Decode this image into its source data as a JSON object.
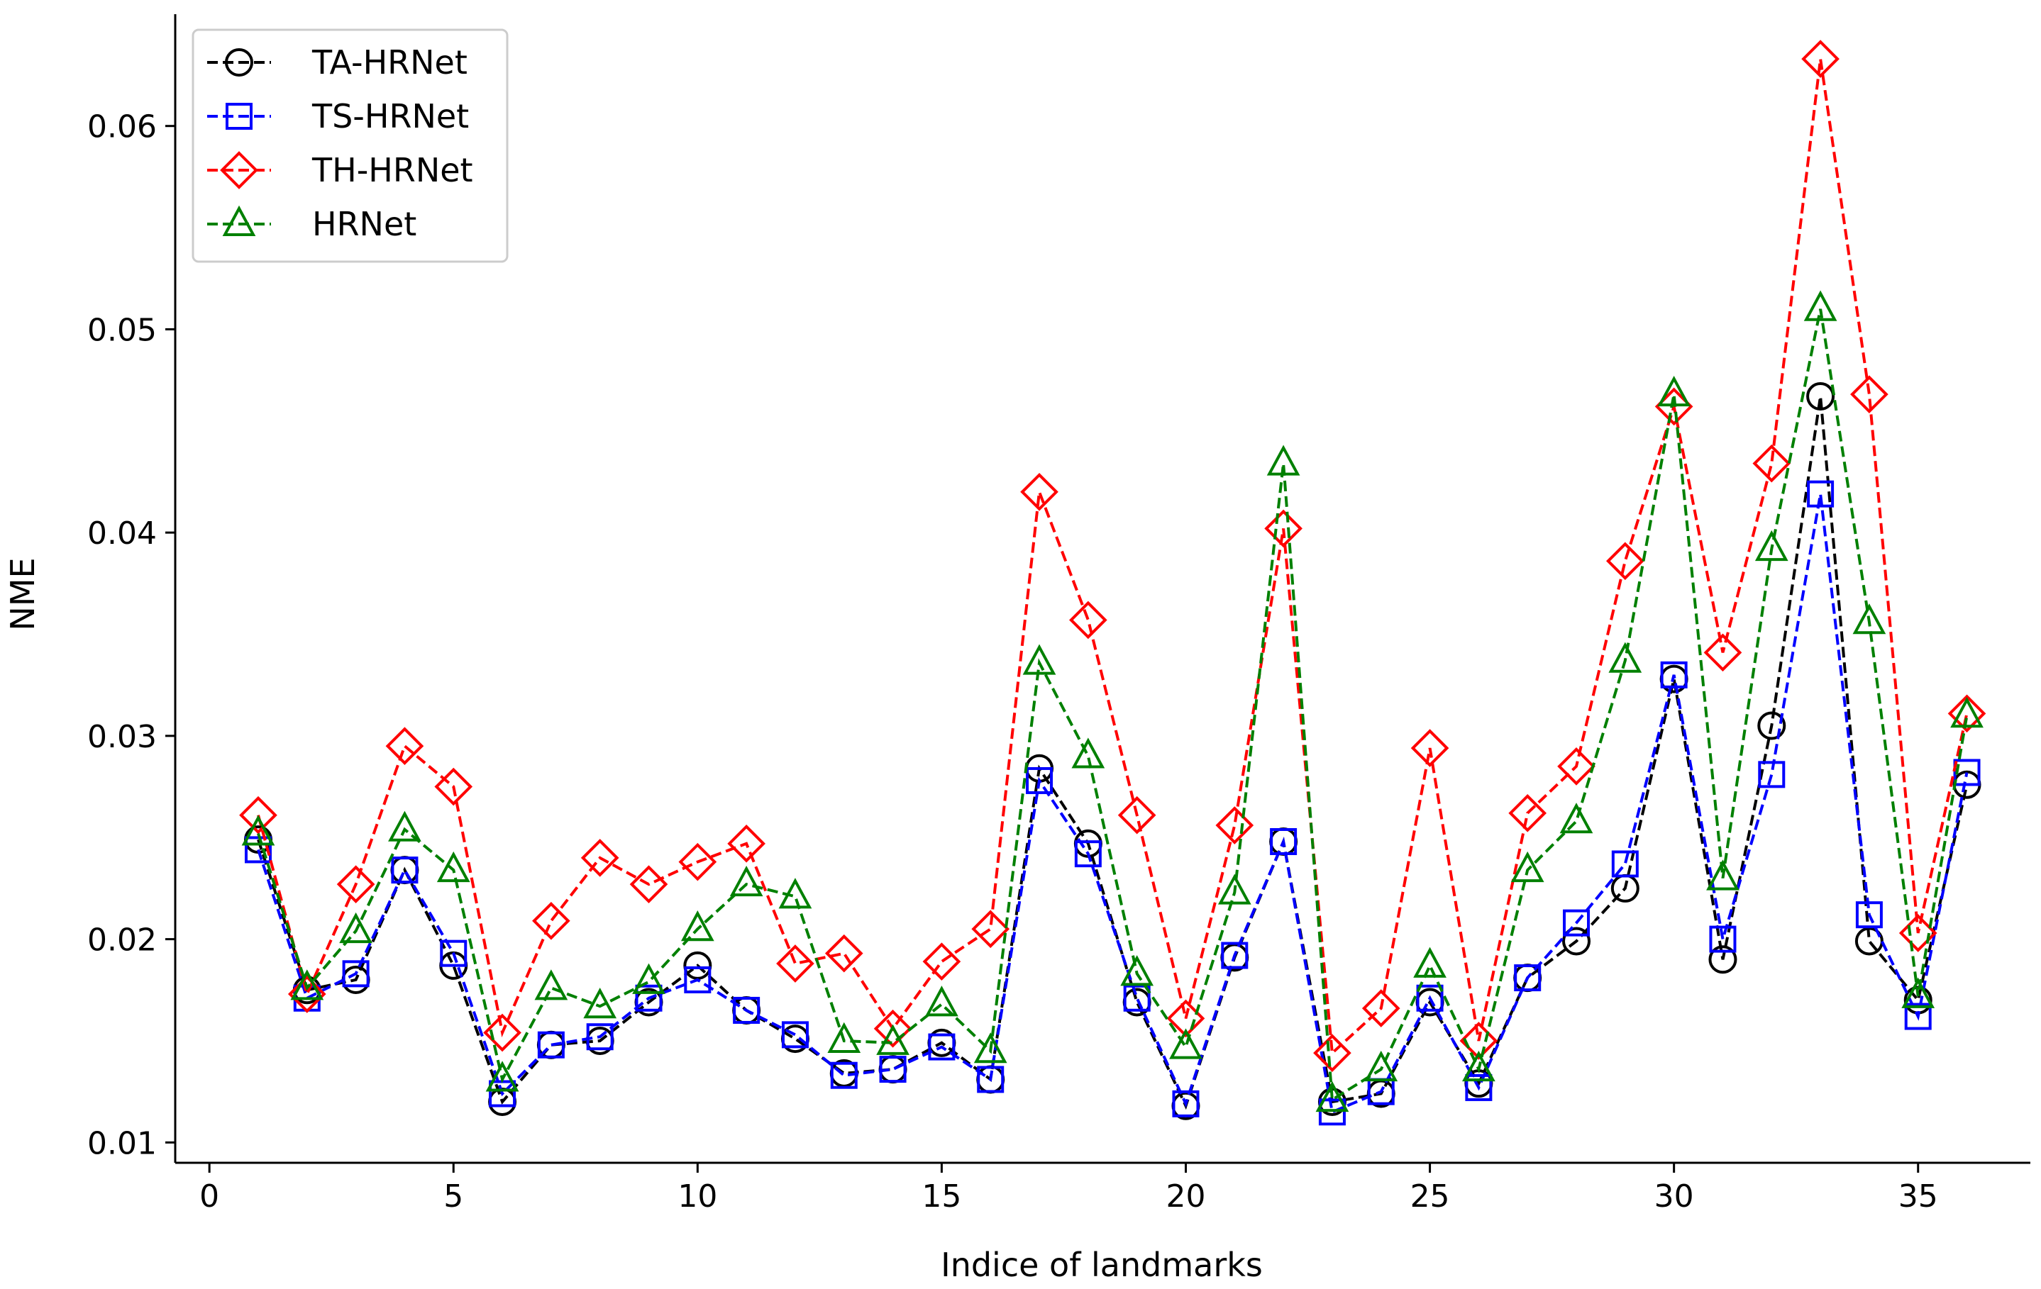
{
  "chart_data": {
    "type": "line",
    "xlabel": "Indice of landmarks",
    "ylabel": "NME",
    "xlim": [
      -0.7,
      37.3
    ],
    "ylim": [
      0.009,
      0.0655
    ],
    "xticks": [
      0,
      5,
      10,
      15,
      20,
      25,
      30,
      35
    ],
    "yticks": [
      0.01,
      0.02,
      0.03,
      0.04,
      0.05,
      0.06
    ],
    "ytick_labels": [
      "0.01",
      "0.02",
      "0.03",
      "0.04",
      "0.05",
      "0.06"
    ],
    "legend_position": "top-left",
    "x": [
      1,
      2,
      3,
      4,
      5,
      6,
      7,
      8,
      9,
      10,
      11,
      12,
      13,
      14,
      15,
      16,
      17,
      18,
      19,
      20,
      21,
      22,
      23,
      24,
      25,
      26,
      27,
      28,
      29,
      30,
      31,
      32,
      33,
      34,
      35,
      36
    ],
    "series": [
      {
        "name": "TA-HRNet",
        "color": "#000000",
        "marker": "circle",
        "values": [
          0.0249,
          0.0175,
          0.018,
          0.0234,
          0.0187,
          0.012,
          0.0148,
          0.015,
          0.0169,
          0.0187,
          0.0165,
          0.0151,
          0.0134,
          0.0136,
          0.0149,
          0.0131,
          0.0284,
          0.0247,
          0.0169,
          0.0118,
          0.0191,
          0.0248,
          0.012,
          0.0124,
          0.0169,
          0.0129,
          0.0181,
          0.0199,
          0.0225,
          0.0328,
          0.019,
          0.0305,
          0.0467,
          0.0199,
          0.017,
          0.0276
        ]
      },
      {
        "name": "TS-HRNet",
        "color": "#0000ff",
        "marker": "square",
        "values": [
          0.0244,
          0.0171,
          0.0183,
          0.0234,
          0.0193,
          0.0124,
          0.0148,
          0.0152,
          0.0171,
          0.018,
          0.0165,
          0.0153,
          0.0133,
          0.0136,
          0.0147,
          0.0131,
          0.0278,
          0.0242,
          0.0171,
          0.0119,
          0.0192,
          0.0248,
          0.0115,
          0.0125,
          0.0171,
          0.0127,
          0.0181,
          0.0208,
          0.0237,
          0.033,
          0.02,
          0.0281,
          0.0419,
          0.0212,
          0.0162,
          0.0282
        ]
      },
      {
        "name": "TH-HRNet",
        "color": "#ff0000",
        "marker": "diamond",
        "values": [
          0.0261,
          0.0173,
          0.0227,
          0.0295,
          0.0275,
          0.0154,
          0.0209,
          0.024,
          0.0227,
          0.0238,
          0.0247,
          0.0188,
          0.0193,
          0.0156,
          0.0189,
          0.0205,
          0.042,
          0.0357,
          0.0261,
          0.0161,
          0.0256,
          0.0402,
          0.0144,
          0.0166,
          0.0294,
          0.015,
          0.0262,
          0.0285,
          0.0386,
          0.0462,
          0.0341,
          0.0434,
          0.0633,
          0.0468,
          0.0203,
          0.0311
        ]
      },
      {
        "name": "HRNet",
        "color": "#008000",
        "marker": "triangle",
        "values": [
          0.0252,
          0.0176,
          0.0204,
          0.0254,
          0.0234,
          0.0131,
          0.0176,
          0.0167,
          0.0179,
          0.0205,
          0.0227,
          0.0221,
          0.015,
          0.0149,
          0.0168,
          0.0145,
          0.0336,
          0.029,
          0.0183,
          0.0147,
          0.0223,
          0.0434,
          0.0121,
          0.0136,
          0.0187,
          0.0136,
          0.0234,
          0.0258,
          0.0337,
          0.0468,
          0.023,
          0.0392,
          0.051,
          0.0356,
          0.0172,
          0.031
        ]
      }
    ]
  }
}
